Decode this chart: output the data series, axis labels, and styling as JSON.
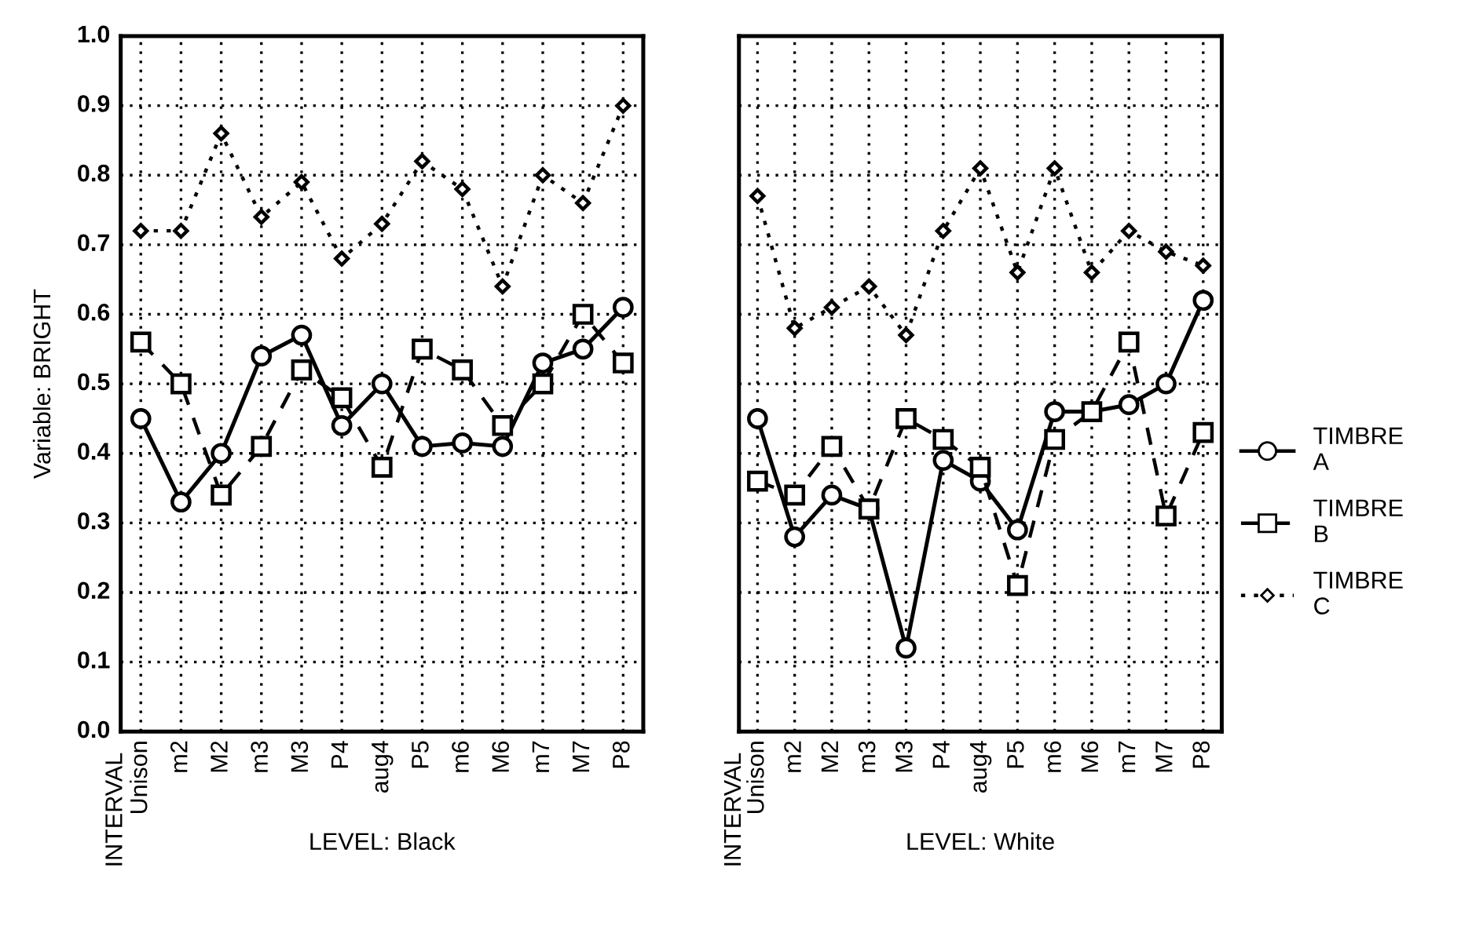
{
  "chart_data": [
    {
      "type": "line",
      "xlabel": "LEVEL: Black",
      "ylabel": "Variable: BRIGHT",
      "annotations": [
        "INTERVAL"
      ],
      "categories": [
        "Unison",
        "m2",
        "M2",
        "m3",
        "M3",
        "P4",
        "aug4",
        "P5",
        "m6",
        "M6",
        "m7",
        "M7",
        "P8"
      ],
      "ylim": [
        0,
        1
      ],
      "yticks": [
        {
          "value": 0,
          "label": "0.0"
        },
        0.1,
        0.2,
        0.3,
        0.4,
        0.5,
        0.6,
        0.7,
        0.8,
        0.9,
        {
          "value": 1,
          "label": "1.0"
        }
      ],
      "grid": true,
      "legend": false,
      "series": [
        {
          "color": "#000000",
          "marker": "circle",
          "line_style": "solid",
          "values": [
            0.45,
            0.33,
            0.4,
            0.54,
            0.57,
            0.44,
            0.5,
            0.41,
            0.415,
            0.41,
            0.53,
            0.55,
            0.61
          ]
        },
        {
          "color": "#000000",
          "marker": "square",
          "line_style": "dashed",
          "values": [
            0.56,
            0.5,
            0.34,
            0.41,
            0.52,
            0.48,
            0.38,
            0.55,
            0.52,
            0.44,
            0.5,
            0.6,
            0.53
          ]
        },
        {
          "color": "#000000",
          "marker": "diamond",
          "line_style": "dotted",
          "values": [
            0.72,
            0.72,
            0.86,
            0.74,
            0.79,
            0.68,
            0.73,
            0.82,
            0.78,
            0.64,
            0.8,
            0.76,
            0.9
          ]
        }
      ]
    },
    {
      "type": "line",
      "xlabel": "LEVEL: White",
      "annotations": [
        "INTERVAL"
      ],
      "tick_labels": "x",
      "categories": [
        "Unison",
        "m2",
        "M2",
        "m3",
        "M3",
        "P4",
        "aug4",
        "P5",
        "m6",
        "M6",
        "m7",
        "M7",
        "P8"
      ],
      "ylim": [
        0,
        1
      ],
      "yticks": [
        0,
        0.1,
        0.2,
        0.3,
        0.4,
        0.5,
        0.6,
        0.7,
        0.8,
        0.9,
        1
      ],
      "grid": true,
      "legend": "right",
      "series": [
        {
          "name": "TIMBRE A",
          "color": "#000000",
          "marker": "circle",
          "line_style": "solid",
          "values": [
            0.45,
            0.28,
            0.34,
            0.32,
            0.12,
            0.39,
            0.36,
            0.29,
            0.46,
            0.46,
            0.47,
            0.5,
            0.62
          ]
        },
        {
          "name": "TIMBRE B",
          "color": "#000000",
          "marker": "square",
          "line_style": "dashed",
          "values": [
            0.36,
            0.34,
            0.41,
            0.32,
            0.45,
            0.42,
            0.38,
            0.21,
            0.42,
            0.46,
            0.56,
            0.31,
            0.43
          ]
        },
        {
          "name": "TIMBRE C",
          "color": "#000000",
          "marker": "diamond",
          "line_style": "dotted",
          "values": [
            0.77,
            0.58,
            0.61,
            0.64,
            0.57,
            0.72,
            0.81,
            0.66,
            0.81,
            0.66,
            0.72,
            0.69,
            0.67
          ]
        }
      ]
    }
  ]
}
